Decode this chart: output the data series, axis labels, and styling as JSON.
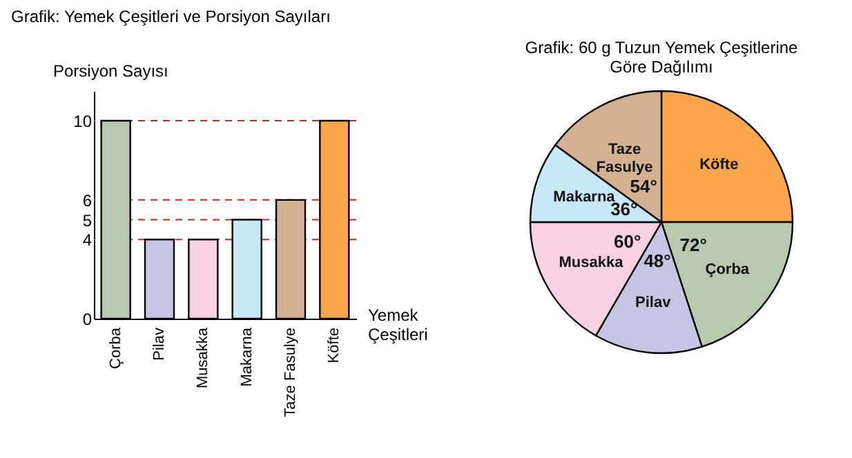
{
  "chart_data": [
    {
      "type": "bar",
      "title": "Grafik: Yemek Çeşitleri ve Porsiyon Sayıları",
      "xlabel": "Yemek Çeşitleri",
      "ylabel": "Porsiyon Sayısı",
      "categories": [
        "Çorba",
        "Pilav",
        "Musakka",
        "Makarna",
        "Taze Fasulye",
        "Köfte"
      ],
      "values": [
        10,
        4,
        4,
        5,
        6,
        10
      ],
      "colors": [
        "#b8c9b0",
        "#c8c4e4",
        "#f8d2e2",
        "#c9e8f7",
        "#d4b192",
        "#f9a54b"
      ],
      "ylim": [
        0,
        11.5
      ],
      "yticks": [
        0,
        4,
        5,
        6,
        10
      ],
      "grid": false,
      "ref_lines": [
        {
          "axis": "y",
          "value": 10,
          "color": "#c0282d",
          "line_style": "dashed"
        },
        {
          "axis": "y",
          "value": 6,
          "color": "#c0282d",
          "line_style": "dashed"
        },
        {
          "axis": "y",
          "value": 5,
          "color": "#c0282d",
          "line_style": "dashed"
        },
        {
          "axis": "y",
          "value": 4,
          "color": "#c0282d",
          "line_style": "dashed"
        }
      ]
    },
    {
      "type": "pie",
      "title": "Grafik: 60 g Tuzun Yemek Çeşitlerine Göre Dağılımı",
      "categories": [
        "Köfte",
        "Çorba",
        "Pilav",
        "Musakka",
        "Makarna",
        "Taze Fasulye"
      ],
      "values": [
        90,
        72,
        48,
        60,
        36,
        54
      ],
      "value_labels": [
        null,
        "72°",
        "48°",
        "60°",
        "36°",
        "54°"
      ],
      "colors": [
        "#f9a54b",
        "#b8c9b0",
        "#c8c4e4",
        "#f8d2e2",
        "#c9e8f7",
        "#d4b192"
      ]
    }
  ]
}
